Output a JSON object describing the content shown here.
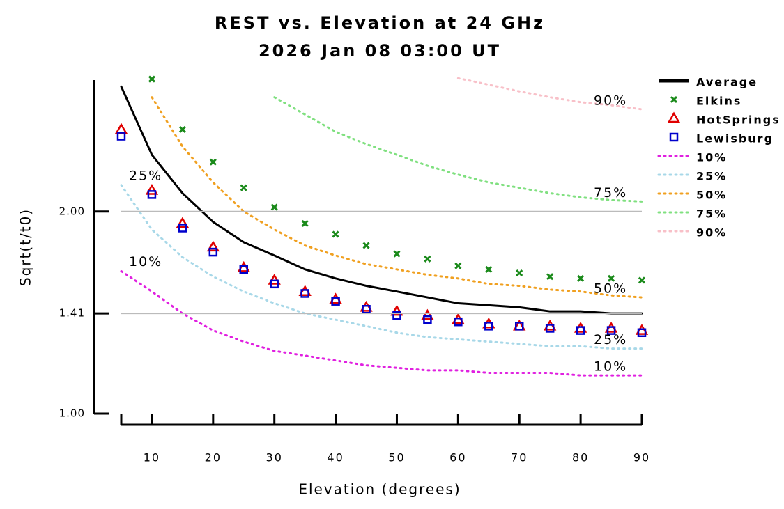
{
  "chart_data": {
    "type": "line",
    "title": "REST vs. Elevation at 24 GHz",
    "subtitle": "2026 Jan 08 03:00 UT",
    "x_label": "Elevation (degrees)",
    "y_label": "Sqrt(t/t0)",
    "y_scale": "log",
    "grid": true,
    "x": [
      5,
      10,
      15,
      20,
      25,
      30,
      35,
      40,
      45,
      50,
      55,
      60,
      65,
      70,
      75,
      80,
      85,
      90
    ],
    "xlim": [
      5,
      90
    ],
    "xticks": [
      10,
      20,
      30,
      40,
      50,
      60,
      70,
      80,
      90
    ],
    "ylim": [
      1,
      3.2
    ],
    "yticks": [
      {
        "value": 1,
        "label": "1.00"
      },
      1.41,
      {
        "value": 2,
        "label": "2.00"
      }
    ],
    "series": [
      {
        "name": "Average",
        "color": "#000000",
        "style": "line",
        "values": [
          3.07,
          2.43,
          2.13,
          1.93,
          1.8,
          1.72,
          1.64,
          1.59,
          1.55,
          1.52,
          1.49,
          1.46,
          1.45,
          1.44,
          1.42,
          1.42,
          1.41,
          1.41
        ]
      },
      {
        "name": "Elkins",
        "color": "#1a8a1a",
        "style": "x",
        "values": [
          null,
          3.15,
          2.65,
          2.37,
          2.17,
          2.03,
          1.92,
          1.85,
          1.78,
          1.73,
          1.7,
          1.66,
          1.64,
          1.62,
          1.6,
          1.59,
          1.59,
          1.58
        ]
      },
      {
        "name": "HotSprings",
        "color": "#e00000",
        "style": "triangle",
        "values": [
          2.65,
          2.15,
          1.92,
          1.77,
          1.65,
          1.58,
          1.52,
          1.48,
          1.44,
          1.42,
          1.4,
          1.38,
          1.36,
          1.35,
          1.35,
          1.34,
          1.34,
          1.33
        ]
      },
      {
        "name": "Lewisburg",
        "color": "#0000cc",
        "style": "square",
        "values": [
          2.59,
          2.12,
          1.89,
          1.74,
          1.64,
          1.56,
          1.51,
          1.47,
          1.43,
          1.4,
          1.38,
          1.37,
          1.35,
          1.35,
          1.34,
          1.33,
          1.33,
          1.32
        ]
      },
      {
        "name": "10%",
        "color": "#e020e0",
        "style": "dotted",
        "values": [
          1.63,
          1.52,
          1.41,
          1.33,
          1.28,
          1.24,
          1.22,
          1.2,
          1.18,
          1.17,
          1.16,
          1.16,
          1.15,
          1.15,
          1.15,
          1.14,
          1.14,
          1.14
        ]
      },
      {
        "name": "25%",
        "color": "#a8d8e8",
        "style": "dotted",
        "values": [
          2.19,
          1.88,
          1.71,
          1.6,
          1.52,
          1.46,
          1.41,
          1.38,
          1.35,
          1.32,
          1.3,
          1.29,
          1.28,
          1.27,
          1.26,
          1.26,
          1.25,
          1.25
        ]
      },
      {
        "name": "50%",
        "color": "#f0a020",
        "style": "dotted",
        "values": [
          null,
          2.96,
          2.5,
          2.21,
          2.0,
          1.88,
          1.78,
          1.72,
          1.67,
          1.64,
          1.61,
          1.59,
          1.56,
          1.55,
          1.53,
          1.52,
          1.5,
          1.49
        ]
      },
      {
        "name": "75%",
        "color": "#80e080",
        "style": "dotted",
        "values": [
          null,
          null,
          null,
          null,
          null,
          2.96,
          2.79,
          2.63,
          2.52,
          2.43,
          2.34,
          2.27,
          2.21,
          2.17,
          2.13,
          2.1,
          2.08,
          2.07
        ]
      },
      {
        "name": "90%",
        "color": "#f8c0c8",
        "style": "dotted",
        "values": [
          null,
          null,
          null,
          null,
          null,
          null,
          null,
          null,
          null,
          null,
          null,
          3.16,
          3.09,
          3.02,
          2.96,
          2.91,
          2.88,
          2.84
        ]
      }
    ]
  }
}
